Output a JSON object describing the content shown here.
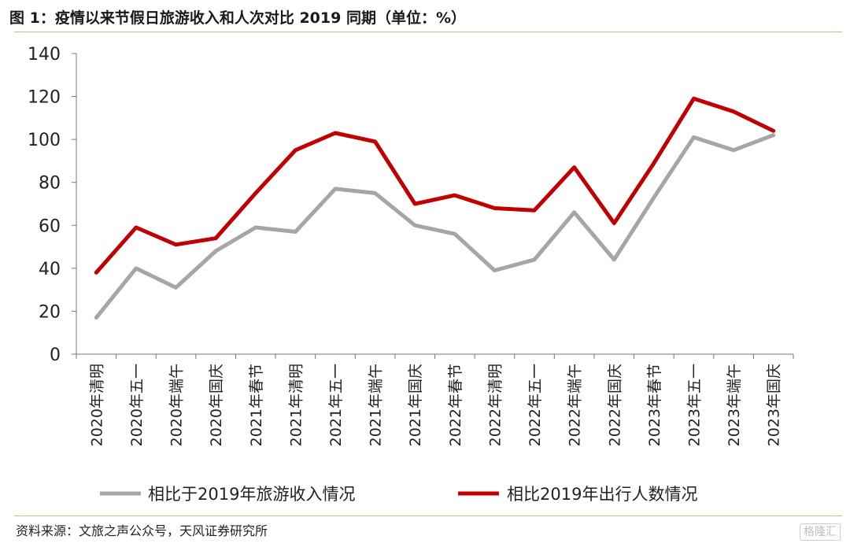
{
  "header": {
    "title": "图 1：疫情以来节假日旅游收入和人次对比 2019 同期（单位：%）"
  },
  "footer": {
    "source": "资料来源：文旅之声公众号，天风证券研究所",
    "watermark": "格隆汇"
  },
  "colors": {
    "income": "#a6a6a6",
    "travel": "#c00000",
    "rule": "#e3b48f"
  },
  "chart_data": {
    "type": "line",
    "title": "图 1：疫情以来节假日旅游收入和人次对比 2019 同期（单位：%）",
    "categories": [
      "2020年清明",
      "2020年五一",
      "2020年端午",
      "2020年国庆",
      "2021年春节",
      "2021年清明",
      "2021年五一",
      "2021年端午",
      "2021年国庆",
      "2022年春节",
      "2022年清明",
      "2022年五一",
      "2022年端午",
      "2022年国庆",
      "2023年春节",
      "2023年五一",
      "2023年端午",
      "2023年国庆"
    ],
    "series": [
      {
        "name": "相比于2019年旅游收入情况",
        "color": "#a6a6a6",
        "values": [
          17,
          40,
          31,
          48,
          59,
          57,
          77,
          75,
          60,
          56,
          39,
          44,
          66,
          44,
          73,
          101,
          95,
          102
        ]
      },
      {
        "name": "相比2019年出行人数情况",
        "color": "#c00000",
        "values": [
          38,
          59,
          51,
          54,
          75,
          95,
          103,
          99,
          70,
          74,
          68,
          67,
          87,
          61,
          89,
          119,
          113,
          104
        ]
      }
    ],
    "ylim": [
      0,
      140
    ],
    "yticks": [
      0,
      20,
      40,
      60,
      80,
      100,
      120,
      140
    ],
    "xlabel": "",
    "ylabel": "",
    "grid": false,
    "legend": "bottom"
  }
}
